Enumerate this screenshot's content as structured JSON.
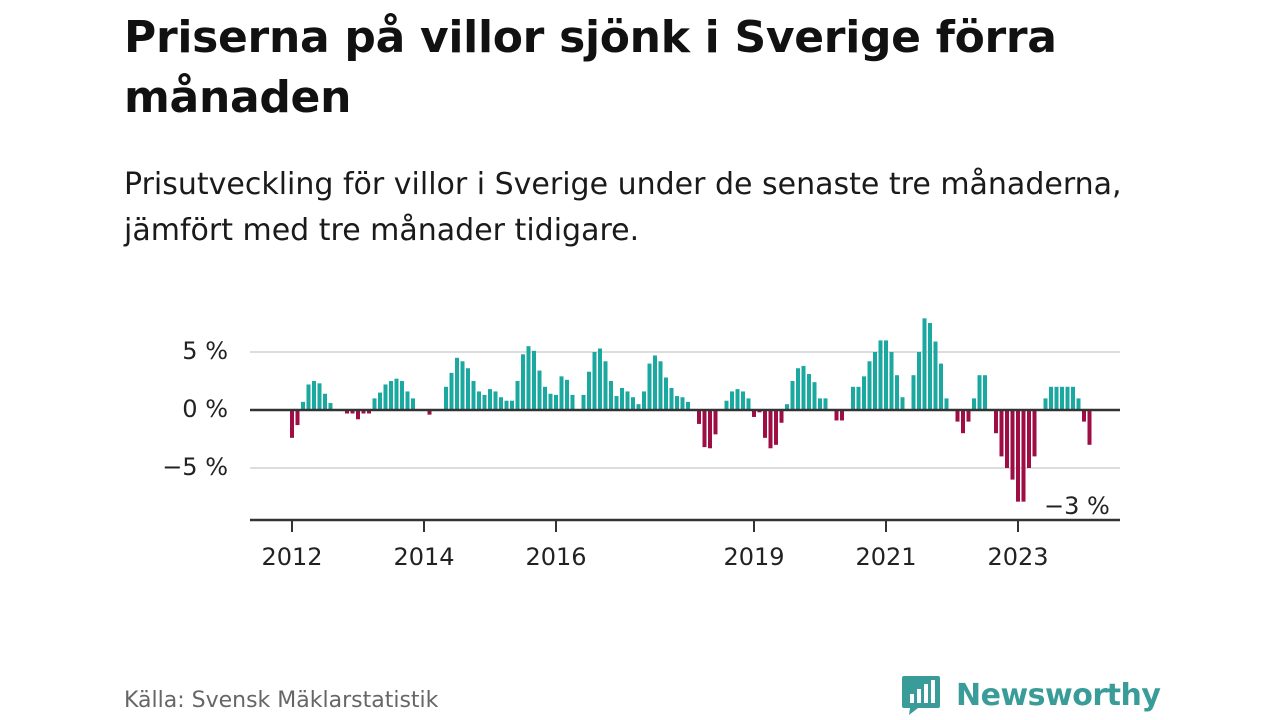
{
  "title": "Priserna på villor sjönk i Sverige förra månaden",
  "subtitle": "Prisutveckling för villor i Sverige under de senaste tre månaderna, jämfört med tre månader tidigare.",
  "source": "Källa: Svensk Mäklarstatistik",
  "brand": {
    "name": "Newsworthy",
    "icon": "newsworthy-logo-icon",
    "color": "#3a9c98"
  },
  "colors": {
    "positive": "#1aa8a0",
    "negative": "#9e0e45",
    "grid": "#dddddd",
    "axis": "#333333"
  },
  "chart_data": {
    "type": "bar",
    "title": "",
    "xlabel": "",
    "ylabel": "",
    "ylim": [
      -9,
      5.5
    ],
    "grid": true,
    "legend": "none",
    "start": "2012-01",
    "x_ticks": [
      "2012",
      "2014",
      "2016",
      "2019",
      "2021",
      "2023"
    ],
    "y_ticks": [
      {
        "value": 5,
        "label": "5 %"
      },
      {
        "value": 0,
        "label": "0 %"
      },
      {
        "value": -5,
        "label": "−5 %"
      }
    ],
    "annotation": {
      "text": "−3 %",
      "value": -3
    },
    "values": [
      -2.4,
      -1.3,
      0.7,
      2.2,
      2.5,
      2.3,
      1.4,
      0.6,
      0,
      0,
      -0.3,
      -0.3,
      -0.8,
      -0.3,
      -0.3,
      1.0,
      1.5,
      2.2,
      2.5,
      2.7,
      2.5,
      1.6,
      1.0,
      0,
      0,
      -0.4,
      0,
      0,
      2.0,
      3.2,
      4.5,
      4.2,
      3.6,
      2.5,
      1.6,
      1.3,
      1.8,
      1.6,
      1.1,
      0.8,
      0.8,
      2.5,
      4.8,
      5.5,
      5.1,
      3.4,
      2.0,
      1.4,
      1.3,
      2.9,
      2.6,
      1.3,
      0,
      1.3,
      3.3,
      5.0,
      5.3,
      4.2,
      2.5,
      1.2,
      1.9,
      1.6,
      1.1,
      0.5,
      1.6,
      4.0,
      4.7,
      4.2,
      2.8,
      1.9,
      1.2,
      1.1,
      0.7,
      0,
      -1.2,
      -3.2,
      -3.3,
      -2.1,
      0,
      0.8,
      1.6,
      1.8,
      1.6,
      1.0,
      -0.6,
      -0.2,
      -2.4,
      -3.3,
      -3.0,
      -1.1,
      0.5,
      2.5,
      3.6,
      3.8,
      3.1,
      2.4,
      1.0,
      1.0,
      0,
      -0.9,
      -0.9,
      0,
      2.0,
      2.0,
      2.9,
      4.2,
      5.0,
      6.0,
      6.0,
      5.0,
      3.0,
      1.1,
      0,
      3.0,
      5.0,
      7.9,
      7.5,
      5.9,
      4.0,
      1.0,
      0,
      -1.0,
      -2.0,
      -1.0,
      1.0,
      3.0,
      3.0,
      0,
      -2.0,
      -4.0,
      -5.0,
      -6.0,
      -7.9,
      -7.9,
      -5.0,
      -4.0,
      0,
      1.0,
      2.0,
      2.0,
      2.0,
      2.0,
      2.0,
      1.0,
      -1.0,
      -3.0
    ]
  }
}
